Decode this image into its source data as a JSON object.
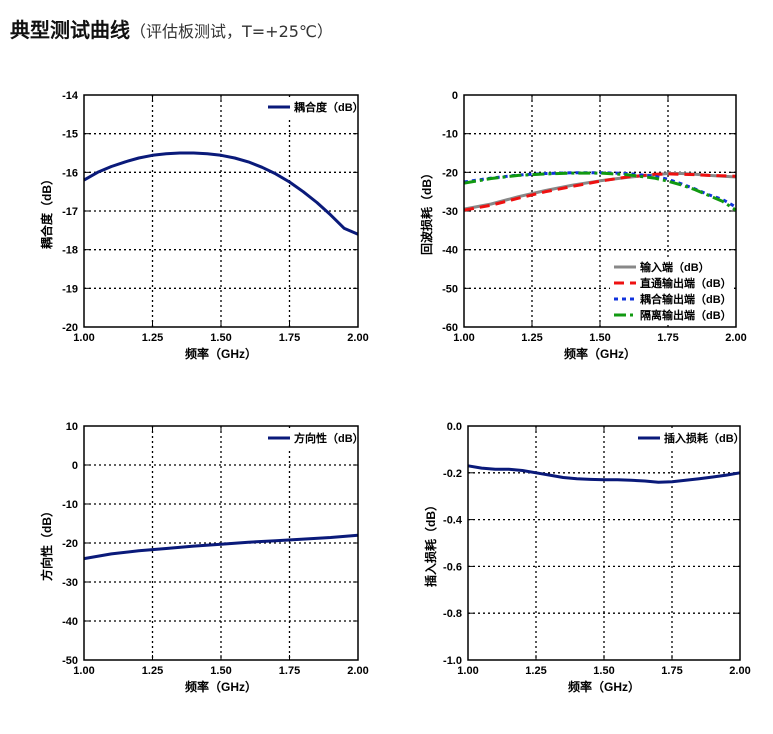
{
  "header": {
    "title": "典型测试曲线",
    "subtitle": "（评估板测试，T=+25℃）"
  },
  "chart_data": [
    {
      "type": "line",
      "xlabel": "频率（GHz）",
      "ylabel": "耦合度（dB）",
      "xlim": [
        1.0,
        2.0
      ],
      "ylim": [
        -20,
        -14
      ],
      "xticks": [
        1.0,
        1.25,
        1.5,
        1.75,
        2.0
      ],
      "xtick_labels": [
        "1.00",
        "1.25",
        "1.50",
        "1.75",
        "2.00"
      ],
      "yticks": [
        -20,
        -19,
        -18,
        -17,
        -16,
        -15,
        -14
      ],
      "ytick_labels": [
        "-20",
        "-19",
        "-18",
        "-17",
        "-16",
        "-15",
        "-14"
      ],
      "grid": true,
      "legend": "top-right",
      "series": [
        {
          "name": "耦合度（dB）",
          "color": "#0a1a7a",
          "dash": "solid",
          "x": [
            1.0,
            1.05,
            1.1,
            1.15,
            1.2,
            1.25,
            1.3,
            1.35,
            1.4,
            1.45,
            1.5,
            1.55,
            1.6,
            1.65,
            1.7,
            1.75,
            1.8,
            1.85,
            1.9,
            1.95,
            2.0
          ],
          "y": [
            -16.2,
            -16.0,
            -15.85,
            -15.73,
            -15.63,
            -15.56,
            -15.52,
            -15.5,
            -15.5,
            -15.52,
            -15.56,
            -15.63,
            -15.73,
            -15.87,
            -16.04,
            -16.25,
            -16.5,
            -16.78,
            -17.1,
            -17.45,
            -17.6
          ]
        }
      ]
    },
    {
      "type": "line",
      "xlabel": "频率（GHz）",
      "ylabel": "回波损耗（dB）",
      "xlim": [
        1.0,
        2.0
      ],
      "ylim": [
        -60,
        0
      ],
      "xticks": [
        1.0,
        1.25,
        1.5,
        1.75,
        2.0
      ],
      "xtick_labels": [
        "1.00",
        "1.25",
        "1.50",
        "1.75",
        "2.00"
      ],
      "yticks": [
        -60,
        -50,
        -40,
        -30,
        -20,
        -10,
        0
      ],
      "ytick_labels": [
        "-60",
        "-50",
        "-40",
        "-30",
        "-20",
        "-10",
        "0"
      ],
      "grid": true,
      "legend": "bottom-right",
      "series": [
        {
          "name": "输入端（dB）",
          "color": "#888888",
          "dash": "solid",
          "x": [
            1.0,
            1.1,
            1.2,
            1.3,
            1.4,
            1.5,
            1.6,
            1.7,
            1.75,
            1.8,
            1.85,
            1.9,
            2.0
          ],
          "y": [
            -29.5,
            -28.2,
            -26.3,
            -24.7,
            -23.3,
            -22.2,
            -21.3,
            -20.6,
            -20.3,
            -20.3,
            -20.5,
            -20.8,
            -21.2
          ]
        },
        {
          "name": "直通输出端（dB）",
          "color": "#ee1111",
          "dash": "10,6",
          "x": [
            1.0,
            1.1,
            1.2,
            1.3,
            1.4,
            1.5,
            1.6,
            1.7,
            1.75,
            1.8,
            1.85,
            1.9,
            2.0
          ],
          "y": [
            -29.8,
            -28.5,
            -26.7,
            -25.0,
            -23.6,
            -22.3,
            -21.2,
            -20.5,
            -20.4,
            -20.5,
            -20.6,
            -20.8,
            -21.0
          ]
        },
        {
          "name": "耦合输出端（dB）",
          "color": "#1133dd",
          "dash": "4,4",
          "x": [
            1.0,
            1.1,
            1.2,
            1.3,
            1.4,
            1.5,
            1.6,
            1.7,
            1.75,
            1.8,
            1.85,
            1.9,
            1.95,
            2.0
          ],
          "y": [
            -22.5,
            -21.5,
            -20.7,
            -20.3,
            -20.1,
            -20.1,
            -20.3,
            -21.0,
            -21.8,
            -23.0,
            -24.3,
            -25.8,
            -27.0,
            -29.0
          ]
        },
        {
          "name": "隔离输出端（dB）",
          "color": "#119911",
          "dash": "12,4,3,4",
          "x": [
            1.0,
            1.1,
            1.2,
            1.3,
            1.4,
            1.5,
            1.6,
            1.7,
            1.75,
            1.8,
            1.85,
            1.9,
            1.95,
            2.0
          ],
          "y": [
            -22.8,
            -21.6,
            -20.8,
            -20.4,
            -20.2,
            -20.2,
            -20.6,
            -21.5,
            -22.3,
            -23.3,
            -24.5,
            -26.0,
            -27.5,
            -29.8
          ]
        }
      ]
    },
    {
      "type": "line",
      "xlabel": "频率（GHz）",
      "ylabel": "方向性（dB）",
      "xlim": [
        1.0,
        2.0
      ],
      "ylim": [
        -50,
        10
      ],
      "xticks": [
        1.0,
        1.25,
        1.5,
        1.75,
        2.0
      ],
      "xtick_labels": [
        "1.00",
        "1.25",
        "1.50",
        "1.75",
        "2.00"
      ],
      "yticks": [
        -50,
        -40,
        -30,
        -20,
        -10,
        0,
        10
      ],
      "ytick_labels": [
        "-50",
        "-40",
        "-30",
        "-20",
        "-10",
        "0",
        "10"
      ],
      "grid": true,
      "legend": "top-right",
      "series": [
        {
          "name": "方向性（dB）",
          "color": "#0a1a7a",
          "dash": "solid",
          "x": [
            1.0,
            1.1,
            1.2,
            1.3,
            1.4,
            1.5,
            1.6,
            1.7,
            1.8,
            1.9,
            2.0
          ],
          "y": [
            -24.0,
            -22.8,
            -22.0,
            -21.4,
            -20.8,
            -20.3,
            -19.8,
            -19.4,
            -19.0,
            -18.6,
            -18.0
          ]
        }
      ]
    },
    {
      "type": "line",
      "xlabel": "频率（GHz）",
      "ylabel": "插入损耗（dB）",
      "xlim": [
        1.0,
        2.0
      ],
      "ylim": [
        -1.0,
        0.0
      ],
      "xticks": [
        1.0,
        1.25,
        1.5,
        1.75,
        2.0
      ],
      "xtick_labels": [
        "1.00",
        "1.25",
        "1.50",
        "1.75",
        "2.00"
      ],
      "yticks": [
        -1.0,
        -0.8,
        -0.6,
        -0.4,
        -0.2,
        0.0
      ],
      "ytick_labels": [
        "-1.0",
        "-0.8",
        "-0.6",
        "-0.4",
        "-0.2",
        "0.0"
      ],
      "grid": true,
      "legend": "top-right",
      "series": [
        {
          "name": "插入损耗（dB）",
          "color": "#0a1a7a",
          "dash": "solid",
          "x": [
            1.0,
            1.05,
            1.1,
            1.15,
            1.2,
            1.25,
            1.3,
            1.35,
            1.4,
            1.45,
            1.5,
            1.55,
            1.6,
            1.65,
            1.7,
            1.75,
            1.8,
            1.85,
            1.9,
            1.95,
            2.0
          ],
          "y": [
            -0.17,
            -0.18,
            -0.185,
            -0.185,
            -0.19,
            -0.2,
            -0.21,
            -0.22,
            -0.225,
            -0.228,
            -0.23,
            -0.23,
            -0.232,
            -0.235,
            -0.24,
            -0.238,
            -0.232,
            -0.225,
            -0.218,
            -0.21,
            -0.2
          ]
        }
      ]
    }
  ]
}
